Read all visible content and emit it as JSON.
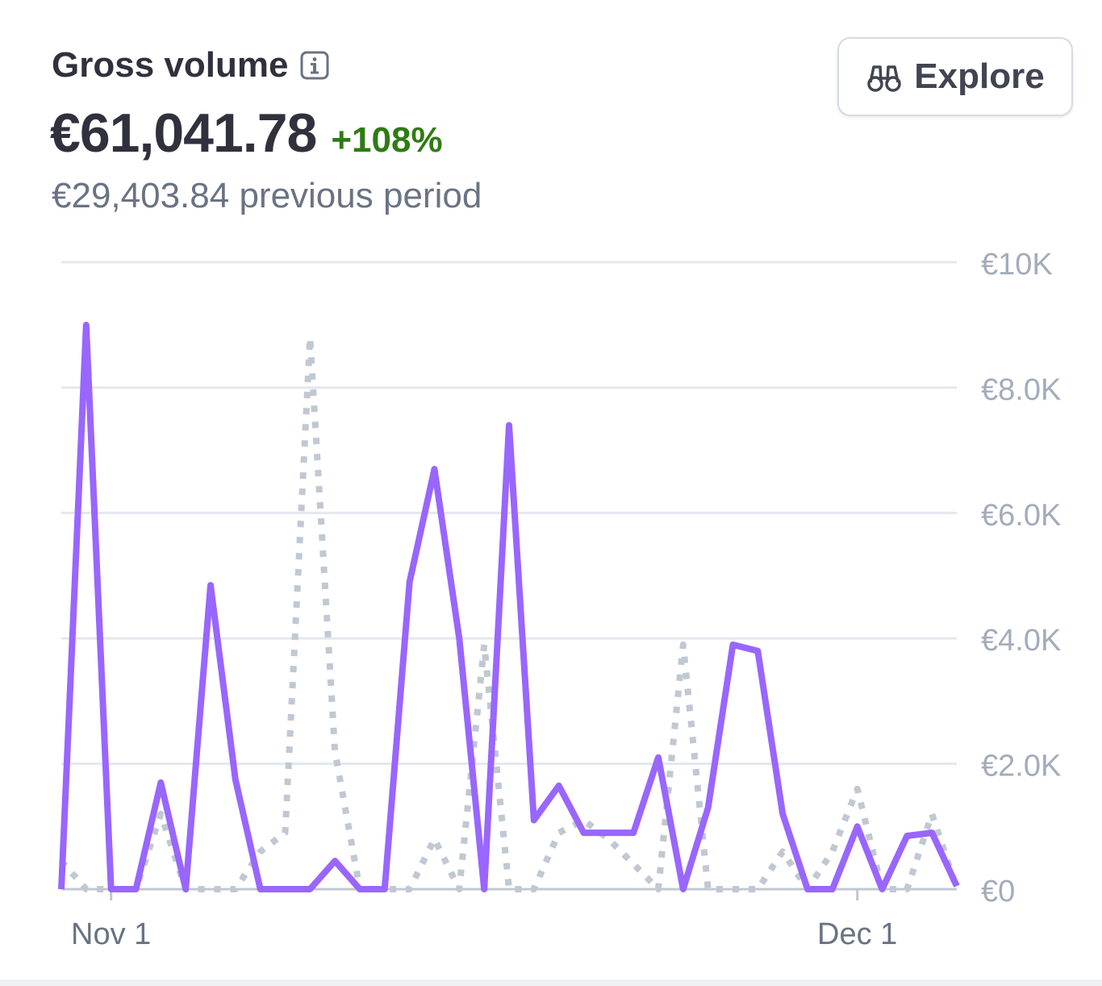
{
  "header": {
    "title": "Gross volume",
    "value": "€61,041.78",
    "change": "+108%",
    "previous": "€29,403.84 previous period"
  },
  "toolbar": {
    "explore_label": "Explore"
  },
  "icons": {
    "info": "info-icon",
    "explore": "binoculars-icon"
  },
  "colors": {
    "current": "#9966ff",
    "previous": "#c0c8d2",
    "positive": "#2f7b14"
  },
  "chart_data": {
    "type": "line",
    "title": "",
    "xlabel": "",
    "ylabel": "",
    "ylim": [
      0,
      10000
    ],
    "yticks": [
      0,
      2000,
      4000,
      6000,
      8000,
      10000
    ],
    "ytick_labels": [
      "€0",
      "€2.0K",
      "€4.0K",
      "€6.0K",
      "€8.0K",
      "€10K"
    ],
    "x_tick_labels": [
      {
        "label": "Nov 1",
        "index": 2
      },
      {
        "label": "Dec 1",
        "index": 32
      }
    ],
    "grid": true,
    "y_axis_position": "right",
    "series": [
      {
        "style": "solid",
        "values": [
          0,
          9000,
          0,
          0,
          1700,
          0,
          4850,
          1750,
          0,
          0,
          0,
          450,
          0,
          0,
          4900,
          6700,
          4000,
          0,
          7400,
          1100,
          1650,
          900,
          900,
          900,
          2100,
          0,
          1300,
          3900,
          3800,
          1200,
          0,
          0,
          1000,
          0,
          850,
          900,
          50
        ]
      },
      {
        "style": "dotted",
        "values": [
          450,
          0,
          0,
          0,
          1200,
          0,
          0,
          0,
          600,
          900,
          8800,
          2200,
          0,
          0,
          0,
          800,
          0,
          3900,
          0,
          0,
          900,
          1100,
          800,
          400,
          0,
          3900,
          0,
          0,
          0,
          600,
          0,
          600,
          1600,
          0,
          0,
          1200,
          0
        ]
      }
    ]
  }
}
